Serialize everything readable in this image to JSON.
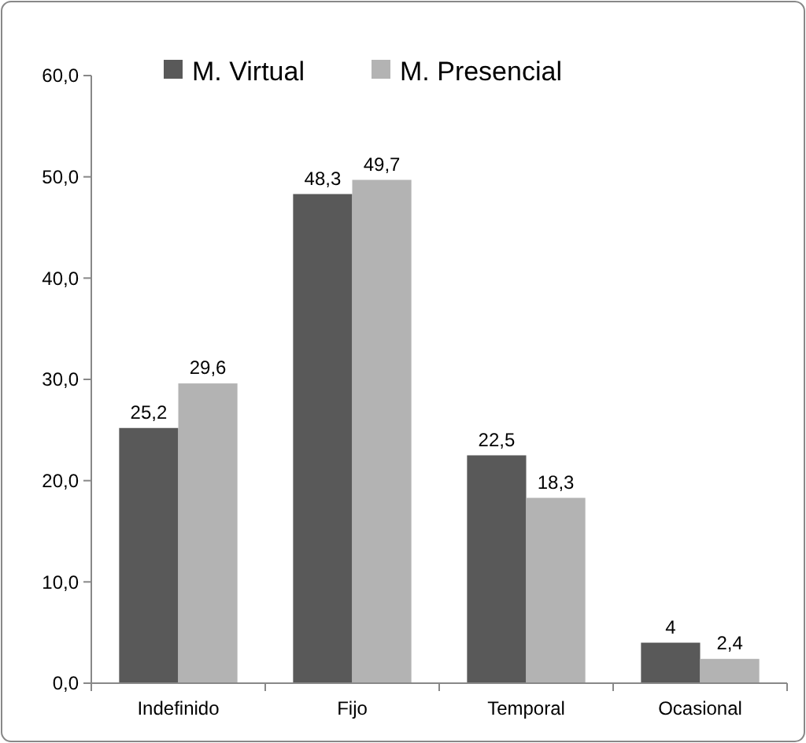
{
  "chart_data": {
    "type": "bar",
    "categories": [
      "Indefinido",
      "Fijo",
      "Temporal",
      "Ocasional"
    ],
    "series": [
      {
        "name": "M. Virtual",
        "color": "#595959",
        "values": [
          25.2,
          48.3,
          22.5,
          4
        ],
        "value_labels": [
          "25,2",
          "48,3",
          "22,5",
          "4"
        ]
      },
      {
        "name": "M. Presencial",
        "color": "#b3b3b3",
        "values": [
          29.6,
          49.7,
          18.3,
          2.4
        ],
        "value_labels": [
          "29,6",
          "49,7",
          "18,3",
          "2,4"
        ]
      }
    ],
    "ylim": [
      0,
      60
    ],
    "yticks": [
      {
        "value": 0,
        "label": "0,0"
      },
      {
        "value": 10,
        "label": "10,0"
      },
      {
        "value": 20,
        "label": "20,0"
      },
      {
        "value": 30,
        "label": "30,0"
      },
      {
        "value": 40,
        "label": "40,0"
      },
      {
        "value": 50,
        "label": "50,0"
      },
      {
        "value": 60,
        "label": "60,0"
      }
    ],
    "legend": "top left",
    "grid": false
  }
}
